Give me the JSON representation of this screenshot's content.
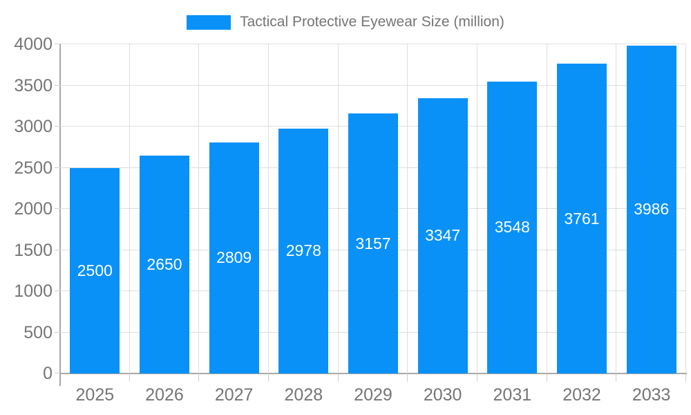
{
  "legend": {
    "label": "Tactical Protective Eyewear Size (million)"
  },
  "colors": {
    "bar": "#0991F8",
    "axis": "#A8A8A8",
    "gridline": "#DEDEDE",
    "tick": "#CFCFCF",
    "axis_text": "#757575",
    "bar_label_text": "#FFFFFF",
    "background": "#FFFFFF"
  },
  "chart_data": {
    "type": "bar",
    "title": "Tactical Protective Eyewear Size (million)",
    "categories": [
      "2025",
      "2026",
      "2027",
      "2028",
      "2029",
      "2030",
      "2031",
      "2032",
      "2033"
    ],
    "values": [
      2500,
      2650,
      2809,
      2978,
      3157,
      3347,
      3548,
      3761,
      3986
    ],
    "xlabel": "",
    "ylabel": "",
    "ylim": [
      0,
      4000
    ],
    "ytick_step": 500,
    "ytick_labels": [
      "0",
      "500",
      "1000",
      "1500",
      "2000",
      "2500",
      "3000",
      "3500",
      "4000"
    ],
    "grid": true,
    "legend_position": "top-center",
    "value_labels": "inside-center",
    "bar_color": "#0991F8"
  }
}
